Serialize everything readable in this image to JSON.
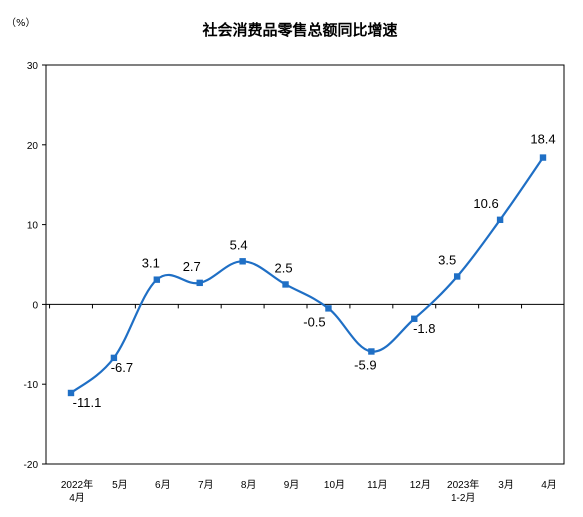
{
  "chart_data": {
    "type": "line",
    "title": "社会消费品零售总额同比增速",
    "unit": "（%）",
    "ylim": [
      -20,
      30
    ],
    "yticks": [
      -20,
      -10,
      0,
      10,
      20,
      30
    ],
    "categories": [
      [
        "2022年",
        "4月"
      ],
      [
        "5月"
      ],
      [
        "6月"
      ],
      [
        "7月"
      ],
      [
        "8月"
      ],
      [
        "9月"
      ],
      [
        "10月"
      ],
      [
        "11月"
      ],
      [
        "12月"
      ],
      [
        "2023年",
        "1-2月"
      ],
      [
        "3月"
      ],
      [
        "4月"
      ]
    ],
    "series": [
      {
        "values": [
          -11.1,
          -6.7,
          3.1,
          2.7,
          5.4,
          2.5,
          -0.5,
          -5.9,
          -1.8,
          3.5,
          10.6,
          18.4
        ],
        "labels": [
          "-11.1",
          "-6.7",
          "3.1",
          "2.7",
          "5.4",
          "2.5",
          "-0.5",
          "-5.9",
          "-1.8",
          "3.5",
          "10.6",
          "18.4"
        ],
        "color": "#1f6fc5"
      }
    ],
    "grid": false,
    "legend": "none"
  }
}
